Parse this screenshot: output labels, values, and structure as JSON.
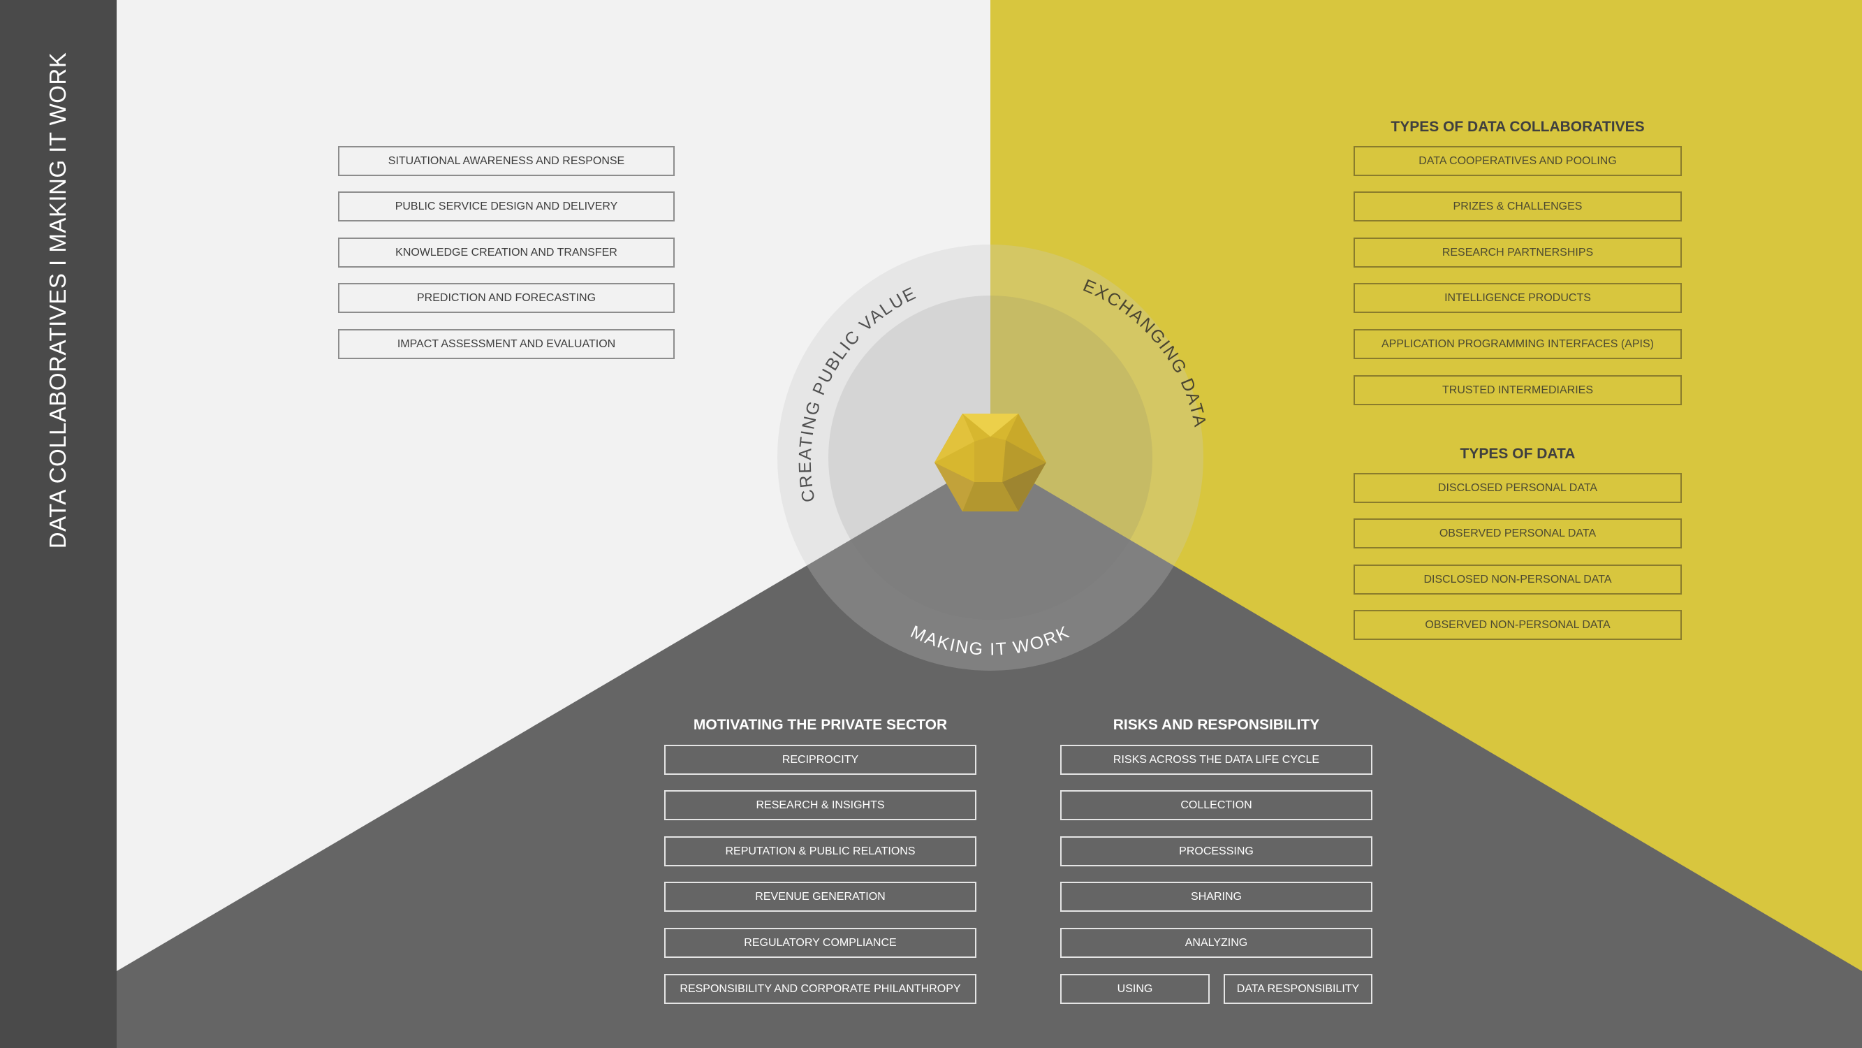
{
  "sidebar": {
    "title": "DATA COLLABORATIVES I MAKING IT WORK"
  },
  "colors": {
    "light": "#f2f2f2",
    "yellow": "#d8c63e",
    "gray": "#656565",
    "sidebar": "#4a4a4a"
  },
  "center": {
    "top_left_label": "CREATING PUBLIC VALUE",
    "top_right_label": "EXCHANGING DATA",
    "bottom_label": "MAKING IT WORK",
    "core_icon": "icosahedron-icon"
  },
  "public_value": {
    "items": [
      "SITUATIONAL AWARENESS AND RESPONSE",
      "PUBLIC SERVICE DESIGN AND DELIVERY",
      "KNOWLEDGE CREATION AND TRANSFER",
      "PREDICTION AND FORECASTING",
      "IMPACT ASSESSMENT AND EVALUATION"
    ]
  },
  "collab_types": {
    "heading": "TYPES OF DATA COLLABORATIVES",
    "items": [
      "DATA COOPERATIVES AND POOLING",
      "PRIZES & CHALLENGES",
      "RESEARCH PARTNERSHIPS",
      "INTELLIGENCE PRODUCTS",
      "APPLICATION PROGRAMMING INTERFACES (APIS)",
      "TRUSTED INTERMEDIARIES"
    ]
  },
  "data_types": {
    "heading": "TYPES OF DATA",
    "items": [
      "DISCLOSED PERSONAL DATA",
      "OBSERVED PERSONAL DATA",
      "DISCLOSED NON-PERSONAL DATA",
      "OBSERVED NON-PERSONAL DATA"
    ]
  },
  "motivating": {
    "heading": "MOTIVATING THE PRIVATE SECTOR",
    "items": [
      "RECIPROCITY",
      "RESEARCH & INSIGHTS",
      "REPUTATION & PUBLIC RELATIONS",
      "REVENUE GENERATION",
      "REGULATORY COMPLIANCE",
      "RESPONSIBILITY AND CORPORATE PHILANTHROPY"
    ]
  },
  "risks": {
    "heading": "RISKS AND RESPONSIBILITY",
    "items": [
      "RISKS ACROSS THE DATA LIFE CYCLE",
      "COLLECTION",
      "PROCESSING",
      "SHARING",
      "ANALYZING"
    ],
    "split_left": "USING",
    "split_right": "DATA RESPONSIBILITY"
  }
}
